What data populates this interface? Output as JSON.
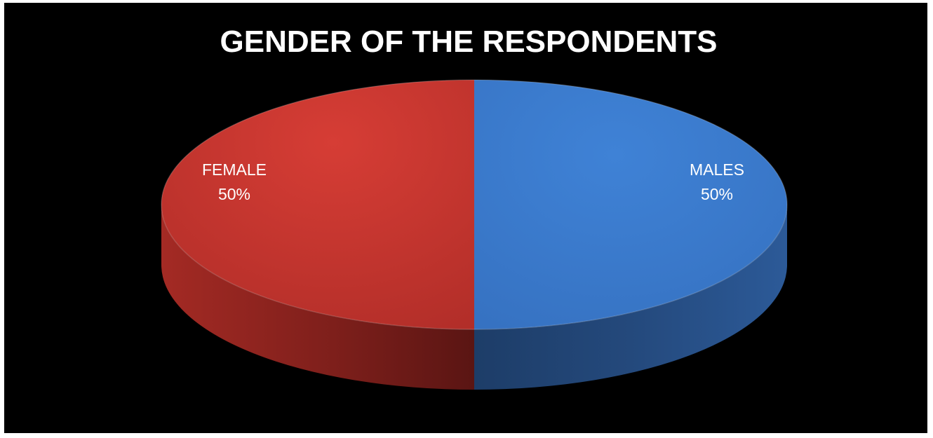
{
  "chart_data": {
    "type": "pie",
    "title": "GENDER OF THE RESPONDENTS",
    "categories": [
      "FEMALE",
      "MALES"
    ],
    "values": [
      50,
      50
    ],
    "value_labels": [
      "50%",
      "50%"
    ],
    "colors": [
      "#c0312d",
      "#3a78c9"
    ],
    "background": "#000000",
    "style": "3d",
    "legend": "none"
  }
}
